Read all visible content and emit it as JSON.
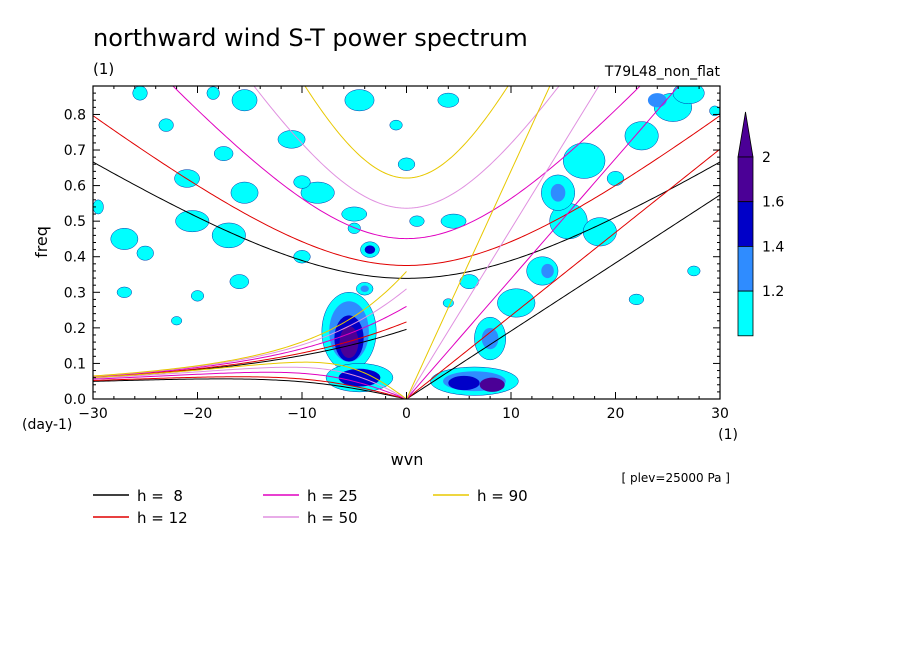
{
  "chart_data": {
    "type": "heatmap",
    "title": "northward wind S-T power spectrum",
    "subtitle_left": "(1)",
    "subtitle_right": "T79L48_non_flat",
    "xlabel": "wvn",
    "ylabel": "freq",
    "x_unit": "(1)",
    "y_unit": "(day-1)",
    "annotation": "[ plev=25000 Pa ]",
    "xlim": [
      -30,
      30
    ],
    "ylim": [
      0,
      0.88
    ],
    "xticks": [
      -30,
      -20,
      -10,
      0,
      10,
      20,
      30
    ],
    "yticks": [
      0,
      0.1,
      0.2,
      0.3,
      0.4,
      0.5,
      0.6,
      0.7,
      0.8
    ],
    "colorbar": {
      "levels": [
        "1.2",
        "1.4",
        "1.6",
        "2"
      ],
      "colors": [
        "#00ffff",
        "#2f8cff",
        "#0000c8",
        "#4b0096"
      ]
    },
    "dispersion_curves": [
      {
        "name": "h =  8",
        "h": 8,
        "color": "#000000"
      },
      {
        "name": "h = 12",
        "h": 12,
        "color": "#e00000"
      },
      {
        "name": "h = 25",
        "h": 25,
        "color": "#e000c0"
      },
      {
        "name": "h = 50",
        "h": 50,
        "color": "#e090e0"
      },
      {
        "name": "h = 90",
        "h": 90,
        "color": "#e8c800"
      }
    ],
    "power_blobs": [
      {
        "x": -5.5,
        "y": 0.19,
        "rx": 2.6,
        "ry": 0.11,
        "level": 0
      },
      {
        "x": -5.5,
        "y": 0.19,
        "rx": 1.9,
        "ry": 0.085,
        "level": 1
      },
      {
        "x": -5.5,
        "y": 0.17,
        "rx": 1.4,
        "ry": 0.065,
        "level": 2
      },
      {
        "x": -5.5,
        "y": 0.16,
        "rx": 0.9,
        "ry": 0.045,
        "level": 3
      },
      {
        "x": -4.5,
        "y": 0.06,
        "rx": 3.2,
        "ry": 0.04,
        "level": 0
      },
      {
        "x": -4.5,
        "y": 0.06,
        "rx": 2.0,
        "ry": 0.025,
        "level": 2
      },
      {
        "x": 6.5,
        "y": 0.05,
        "rx": 4.2,
        "ry": 0.04,
        "level": 0
      },
      {
        "x": 6.5,
        "y": 0.05,
        "rx": 3.0,
        "ry": 0.028,
        "level": 1
      },
      {
        "x": 5.5,
        "y": 0.045,
        "rx": 1.5,
        "ry": 0.02,
        "level": 2
      },
      {
        "x": 8.2,
        "y": 0.04,
        "rx": 1.2,
        "ry": 0.02,
        "level": 3
      },
      {
        "x": 8.0,
        "y": 0.17,
        "rx": 1.5,
        "ry": 0.06,
        "level": 0
      },
      {
        "x": 8.0,
        "y": 0.17,
        "rx": 0.8,
        "ry": 0.03,
        "level": 1
      },
      {
        "x": 10.5,
        "y": 0.27,
        "rx": 1.8,
        "ry": 0.04,
        "level": 0
      },
      {
        "x": 13.0,
        "y": 0.36,
        "rx": 1.5,
        "ry": 0.04,
        "level": 0
      },
      {
        "x": 13.5,
        "y": 0.36,
        "rx": 0.6,
        "ry": 0.02,
        "level": 1
      },
      {
        "x": 15.5,
        "y": 0.5,
        "rx": 1.8,
        "ry": 0.05,
        "level": 0
      },
      {
        "x": 14.5,
        "y": 0.58,
        "rx": 1.6,
        "ry": 0.05,
        "level": 0
      },
      {
        "x": 14.5,
        "y": 0.58,
        "rx": 0.7,
        "ry": 0.025,
        "level": 1
      },
      {
        "x": 18.5,
        "y": 0.47,
        "rx": 1.6,
        "ry": 0.04,
        "level": 0
      },
      {
        "x": 17.0,
        "y": 0.67,
        "rx": 2.0,
        "ry": 0.05,
        "level": 0
      },
      {
        "x": 22.5,
        "y": 0.74,
        "rx": 1.6,
        "ry": 0.04,
        "level": 0
      },
      {
        "x": 25.5,
        "y": 0.82,
        "rx": 1.8,
        "ry": 0.04,
        "level": 0
      },
      {
        "x": 24.0,
        "y": 0.84,
        "rx": 0.9,
        "ry": 0.02,
        "level": 1
      },
      {
        "x": 27.0,
        "y": 0.86,
        "rx": 1.5,
        "ry": 0.03,
        "level": 0
      },
      {
        "x": -3.5,
        "y": 0.42,
        "rx": 0.9,
        "ry": 0.022,
        "level": 0
      },
      {
        "x": -3.5,
        "y": 0.42,
        "rx": 0.5,
        "ry": 0.012,
        "level": 2
      },
      {
        "x": -4.0,
        "y": 0.31,
        "rx": 0.8,
        "ry": 0.018,
        "level": 0
      },
      {
        "x": -4.0,
        "y": 0.31,
        "rx": 0.4,
        "ry": 0.009,
        "level": 1
      },
      {
        "x": -8.5,
        "y": 0.58,
        "rx": 1.6,
        "ry": 0.03,
        "level": 0
      },
      {
        "x": -15.5,
        "y": 0.58,
        "rx": 1.3,
        "ry": 0.03,
        "level": 0
      },
      {
        "x": -17.0,
        "y": 0.46,
        "rx": 1.6,
        "ry": 0.035,
        "level": 0
      },
      {
        "x": -20.5,
        "y": 0.5,
        "rx": 1.6,
        "ry": 0.03,
        "level": 0
      },
      {
        "x": -21.0,
        "y": 0.62,
        "rx": 1.2,
        "ry": 0.025,
        "level": 0
      },
      {
        "x": -27.0,
        "y": 0.45,
        "rx": 1.3,
        "ry": 0.03,
        "level": 0
      },
      {
        "x": -16.0,
        "y": 0.33,
        "rx": 0.9,
        "ry": 0.02,
        "level": 0
      },
      {
        "x": -25.0,
        "y": 0.41,
        "rx": 0.8,
        "ry": 0.02,
        "level": 0
      },
      {
        "x": -29.5,
        "y": 0.54,
        "rx": 0.5,
        "ry": 0.02,
        "level": 0
      },
      {
        "x": -10.0,
        "y": 0.61,
        "rx": 0.8,
        "ry": 0.018,
        "level": 0
      },
      {
        "x": -5.0,
        "y": 0.52,
        "rx": 1.2,
        "ry": 0.02,
        "level": 0
      },
      {
        "x": -11.0,
        "y": 0.73,
        "rx": 1.3,
        "ry": 0.025,
        "level": 0
      },
      {
        "x": -17.5,
        "y": 0.69,
        "rx": 0.9,
        "ry": 0.02,
        "level": 0
      },
      {
        "x": -18.5,
        "y": 0.86,
        "rx": 0.6,
        "ry": 0.018,
        "level": 0
      },
      {
        "x": -23.0,
        "y": 0.77,
        "rx": 0.7,
        "ry": 0.018,
        "level": 0
      },
      {
        "x": -4.5,
        "y": 0.84,
        "rx": 1.4,
        "ry": 0.03,
        "level": 0
      },
      {
        "x": -15.5,
        "y": 0.84,
        "rx": 1.2,
        "ry": 0.03,
        "level": 0
      },
      {
        "x": 0.0,
        "y": 0.66,
        "rx": 0.8,
        "ry": 0.018,
        "level": 0
      },
      {
        "x": 4.0,
        "y": 0.84,
        "rx": 1.0,
        "ry": 0.02,
        "level": 0
      },
      {
        "x": 4.5,
        "y": 0.5,
        "rx": 1.2,
        "ry": 0.02,
        "level": 0
      },
      {
        "x": 6.0,
        "y": 0.33,
        "rx": 0.9,
        "ry": 0.02,
        "level": 0
      },
      {
        "x": 1.0,
        "y": 0.5,
        "rx": 0.7,
        "ry": 0.015,
        "level": 0
      },
      {
        "x": -10.0,
        "y": 0.4,
        "rx": 0.8,
        "ry": 0.018,
        "level": 0
      },
      {
        "x": -25.5,
        "y": 0.86,
        "rx": 0.7,
        "ry": 0.02,
        "level": 0
      },
      {
        "x": -20.0,
        "y": 0.29,
        "rx": 0.6,
        "ry": 0.015,
        "level": 0
      },
      {
        "x": -27.0,
        "y": 0.3,
        "rx": 0.7,
        "ry": 0.015,
        "level": 0
      },
      {
        "x": -5.0,
        "y": 0.48,
        "rx": 0.6,
        "ry": 0.015,
        "level": 0
      },
      {
        "x": -1.0,
        "y": 0.77,
        "rx": 0.6,
        "ry": 0.014,
        "level": 0
      },
      {
        "x": 20.0,
        "y": 0.62,
        "rx": 0.8,
        "ry": 0.02,
        "level": 0
      },
      {
        "x": 22.0,
        "y": 0.28,
        "rx": 0.7,
        "ry": 0.015,
        "level": 0
      },
      {
        "x": 27.5,
        "y": 0.36,
        "rx": 0.6,
        "ry": 0.014,
        "level": 0
      },
      {
        "x": 29.5,
        "y": 0.81,
        "rx": 0.5,
        "ry": 0.014,
        "level": 0
      },
      {
        "x": -22.0,
        "y": 0.22,
        "rx": 0.5,
        "ry": 0.012,
        "level": 0
      },
      {
        "x": 4.0,
        "y": 0.27,
        "rx": 0.5,
        "ry": 0.012,
        "level": 0
      }
    ]
  }
}
